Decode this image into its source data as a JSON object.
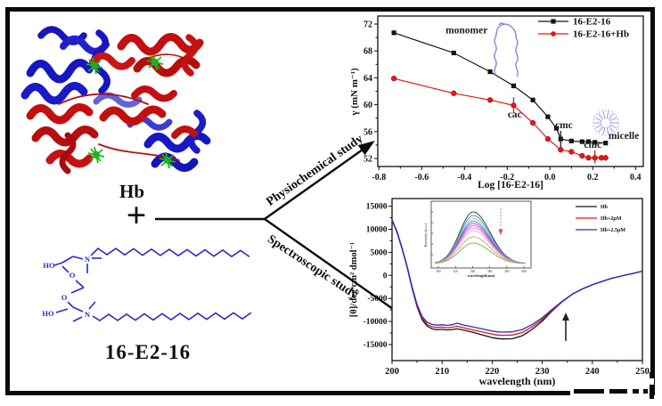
{
  "figure": {
    "hb_label": "Hb",
    "plus_sign": "+",
    "molecule_label": "16-E2-16",
    "arrow_top_label": "Physiochemical study",
    "arrow_bottom_label": "Spectroscopic study",
    "molecule_atoms": {
      "ho_top": "HO",
      "o_top": "O",
      "n_top": "N",
      "ho_bottom": "HO",
      "o_bottom": "O",
      "n_bottom": "N"
    },
    "accent_blue": "#2b2bc8",
    "accent_red": "#c40f0f"
  },
  "chart_data": [
    {
      "id": "surface-tension",
      "type": "line",
      "title": "",
      "xlabel": "Log [16-E2-16]",
      "ylabel": "γ (mN m⁻¹)",
      "xlim": [
        -0.81,
        0.43
      ],
      "ylim": [
        50.8,
        73.2
      ],
      "xticks": [
        -0.8,
        -0.6,
        -0.4,
        -0.2,
        0.0,
        0.2,
        0.4
      ],
      "yticks": [
        52,
        56,
        60,
        64,
        68,
        72
      ],
      "grid": false,
      "legend_position": "top-right",
      "series": [
        {
          "name": "16-E2-16",
          "color": "#141414",
          "marker": "square",
          "x": [
            -0.73,
            -0.45,
            -0.28,
            -0.17,
            -0.08,
            -0.01,
            0.03,
            0.05,
            0.1,
            0.15,
            0.18,
            0.21,
            0.26
          ],
          "y": [
            70.7,
            67.7,
            64.9,
            62.8,
            60.7,
            58.2,
            56.5,
            54.9,
            54.6,
            54.5,
            54.5,
            54.4,
            54.3
          ]
        },
        {
          "name": "16-E2-16+Hb",
          "color": "#e01818",
          "marker": "circle",
          "x": [
            -0.73,
            -0.45,
            -0.28,
            -0.17,
            -0.08,
            -0.01,
            0.05,
            0.1,
            0.15,
            0.18,
            0.21,
            0.24,
            0.26
          ],
          "y": [
            63.9,
            61.7,
            60.7,
            59.9,
            57.3,
            54.9,
            53.3,
            53.0,
            52.4,
            52.1,
            52.1,
            52.1,
            52.1
          ]
        }
      ],
      "annotations": [
        {
          "text": "monomer",
          "x": -0.39,
          "y": 70.6
        },
        {
          "text": "cac",
          "x": -0.165,
          "y": 58.1,
          "bar": {
            "x": -0.17,
            "y1": 58.7,
            "y2": 61.1,
            "color": "#a23434"
          }
        },
        {
          "text": "cmc",
          "x": 0.065,
          "y": 56.5,
          "bar": {
            "x": 0.05,
            "y1": 53.7,
            "y2": 56.1,
            "color": "#282828"
          }
        },
        {
          "text": "cmc",
          "x": 0.2,
          "y": 53.6,
          "bar": {
            "x": 0.21,
            "y1": 51.3,
            "y2": 53.2,
            "color": "#d42222"
          }
        },
        {
          "text": "micelle",
          "x": 0.345,
          "y": 54.9
        }
      ]
    },
    {
      "id": "cd-spectra",
      "type": "line",
      "title": "",
      "xlabel": "wavelength (nm)",
      "ylabel": "[θ]/deg cm² dmol⁻¹",
      "xlim": [
        200,
        250
      ],
      "ylim": [
        -18500,
        16600
      ],
      "xticks": [
        200,
        210,
        220,
        230,
        240,
        250
      ],
      "yticks": [
        15000,
        10000,
        5000,
        0,
        -5000,
        -10000,
        -15000
      ],
      "grid": false,
      "legend_position": "top-right",
      "x_shared": [
        200,
        201,
        202,
        203,
        204,
        205,
        206,
        207,
        208,
        209,
        210,
        211,
        212,
        213,
        214,
        216,
        218,
        220,
        221,
        222,
        224,
        226,
        228,
        230,
        232,
        234,
        236,
        238,
        240,
        242,
        244,
        246,
        248,
        250
      ],
      "series": [
        {
          "name": "Hb",
          "color": "#141414",
          "y": [
            12000,
            9300,
            5800,
            1800,
            -2800,
            -6800,
            -9600,
            -11000,
            -11600,
            -11800,
            -11700,
            -11850,
            -11750,
            -11600,
            -11800,
            -12300,
            -12900,
            -13500,
            -13700,
            -13800,
            -13750,
            -13100,
            -11700,
            -9900,
            -7700,
            -5700,
            -4100,
            -2950,
            -2050,
            -1300,
            -600,
            -100,
            400,
            900
          ]
        },
        {
          "name": "Hb+2μM",
          "color": "#e01818",
          "y": [
            12050,
            9400,
            5900,
            1900,
            -2650,
            -6550,
            -9250,
            -10600,
            -11150,
            -11300,
            -11200,
            -11350,
            -11250,
            -11050,
            -11300,
            -11800,
            -12250,
            -12750,
            -12950,
            -13000,
            -12950,
            -12400,
            -11150,
            -9550,
            -7550,
            -5650,
            -4080,
            -2940,
            -2040,
            -1295,
            -595,
            -95,
            405,
            905
          ]
        },
        {
          "name": "Hb+2.5μM",
          "color": "#2b2bc8",
          "y": [
            12100,
            9500,
            6000,
            2000,
            -2500,
            -6300,
            -8900,
            -10150,
            -10650,
            -10800,
            -10700,
            -10850,
            -10700,
            -10350,
            -10700,
            -11150,
            -11600,
            -12100,
            -12250,
            -12300,
            -12250,
            -11750,
            -10650,
            -9200,
            -7350,
            -5600,
            -4050,
            -2930,
            -2030,
            -1290,
            -590,
            -90,
            410,
            910
          ]
        }
      ],
      "arrow_annotation": {
        "x": 234.7,
        "y1": -14200,
        "y2": -8050,
        "direction": "up"
      }
    },
    {
      "id": "fluorescence-inset",
      "type": "line",
      "xlabel": "wavelength(nm)",
      "ylabel": "Intensity (a.u.)",
      "xticks": [
        300,
        320,
        340,
        360,
        380,
        400
      ],
      "peak_wavelength": 340,
      "arrow_direction": "down",
      "curves": [
        {
          "color": "#44342a",
          "peak": 58
        },
        {
          "color": "#2f9e8f",
          "peak": 54
        },
        {
          "color": "#7cc4e2",
          "peak": 50.5
        },
        {
          "color": "#5c6ad8",
          "peak": 47.5
        },
        {
          "color": "#9258cc",
          "peak": 45
        },
        {
          "color": "#c75ac4",
          "peak": 42.5
        },
        {
          "color": "#e87fd0",
          "peak": 40
        },
        {
          "color": "#f0a6c8",
          "peak": 37
        },
        {
          "color": "#d2a55e",
          "peak": 30
        },
        {
          "color": "#6cb14e",
          "peak": 23
        }
      ]
    }
  ]
}
